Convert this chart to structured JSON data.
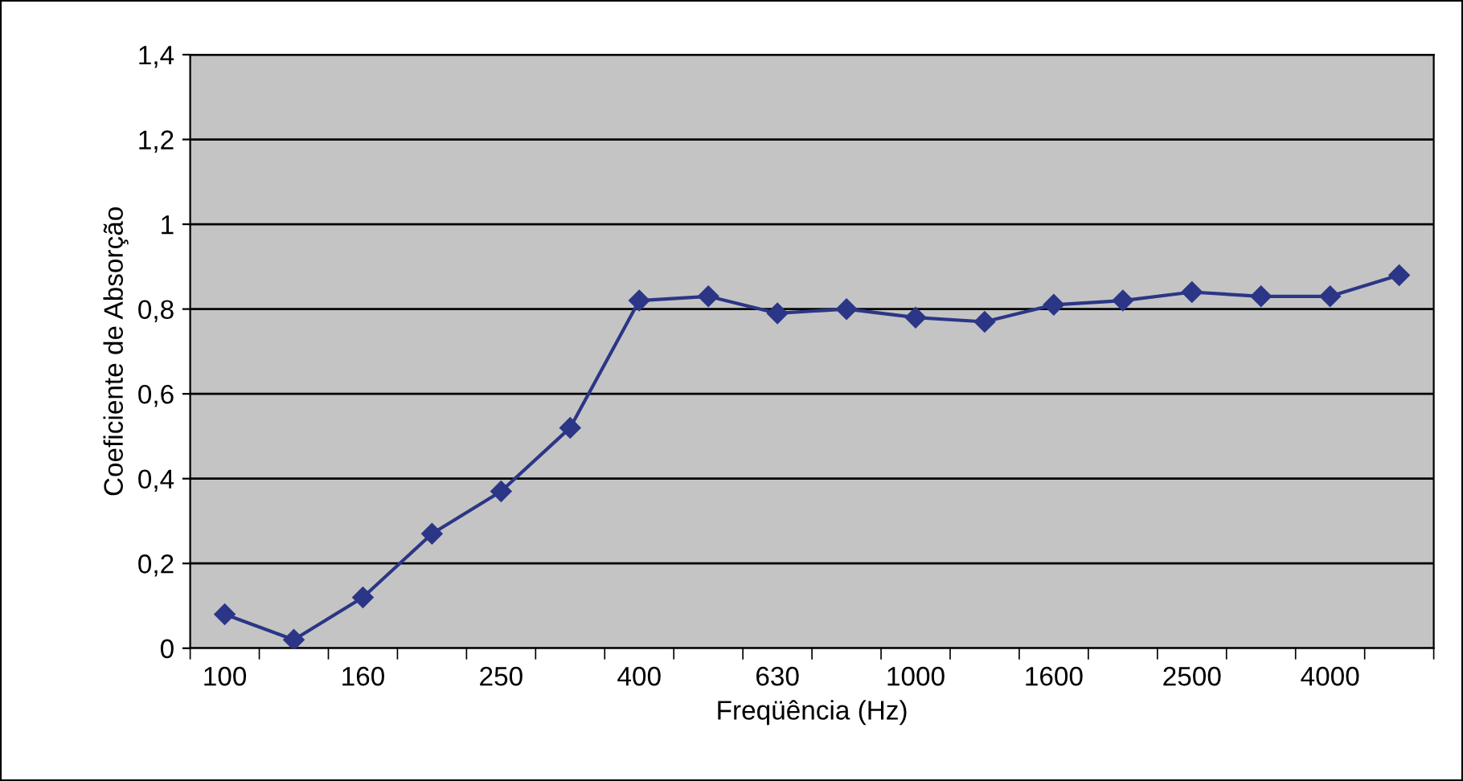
{
  "chart_data": {
    "type": "line",
    "xlabel": "Freqüência (Hz)",
    "ylabel": "Coeficiente de Absorção",
    "categories": [
      "100",
      null,
      "160",
      null,
      "250",
      null,
      "400",
      null,
      "630",
      null,
      "1000",
      null,
      "1600",
      null,
      "2500",
      null,
      "4000",
      null
    ],
    "series": [
      {
        "color": "#2b3686",
        "values": [
          0.08,
          0.02,
          0.12,
          0.27,
          0.37,
          0.52,
          0.82,
          0.83,
          0.79,
          0.8,
          0.78,
          0.77,
          0.81,
          0.82,
          0.84,
          0.83,
          0.83,
          0.88
        ]
      }
    ],
    "ylim": [
      0,
      1.4
    ],
    "yticks": [
      0,
      {
        "value": 0.2,
        "label": "0,2"
      },
      {
        "value": 0.4,
        "label": "0,4"
      },
      {
        "value": 0.6,
        "label": "0,6"
      },
      {
        "value": 0.8,
        "label": "0,8"
      },
      1,
      {
        "value": 1.2,
        "label": "1,2"
      },
      {
        "value": 1.4,
        "label": "1,4"
      }
    ],
    "grid": "y",
    "marker": "diamond",
    "line_style": "solid",
    "legend": false
  }
}
